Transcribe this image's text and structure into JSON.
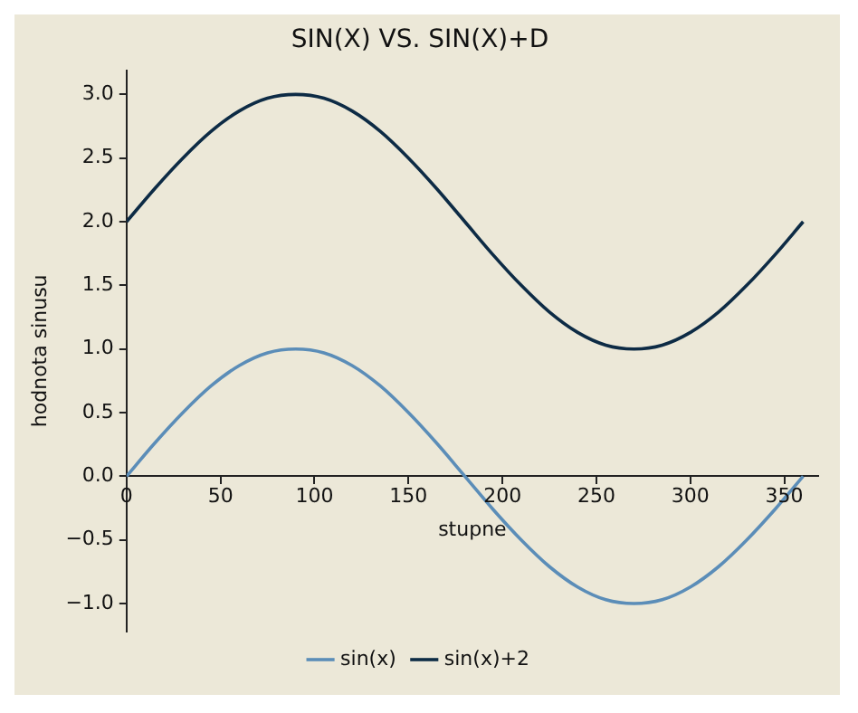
{
  "chart_data": {
    "type": "line",
    "title": "SIN(X) VS. SIN(X)+D",
    "xlabel": "stupne",
    "ylabel": "hodnota sinusu",
    "x": [
      0,
      15,
      30,
      45,
      60,
      75,
      90,
      105,
      120,
      135,
      150,
      165,
      180,
      195,
      210,
      225,
      240,
      255,
      270,
      285,
      300,
      315,
      330,
      345,
      360
    ],
    "series": [
      {
        "name": "sin(x)",
        "color": "#5b8db8",
        "values": [
          0,
          0.26,
          0.5,
          0.71,
          0.87,
          0.97,
          1,
          0.97,
          0.87,
          0.71,
          0.5,
          0.26,
          0,
          -0.26,
          -0.5,
          -0.71,
          -0.87,
          -0.97,
          -1,
          -0.97,
          -0.87,
          -0.71,
          -0.5,
          -0.26,
          0
        ]
      },
      {
        "name": "sin(x)+2",
        "color": "#0d2b45",
        "values": [
          2,
          2.26,
          2.5,
          2.71,
          2.87,
          2.97,
          3,
          2.97,
          2.87,
          2.71,
          2.5,
          2.26,
          2,
          1.74,
          1.5,
          1.29,
          1.13,
          1.03,
          1,
          1.03,
          1.13,
          1.29,
          1.5,
          1.74,
          2
        ]
      }
    ],
    "xlim": [
      0,
      368
    ],
    "xticks": [
      0,
      50,
      100,
      150,
      200,
      250,
      300,
      350
    ],
    "ylim": [
      -1.22,
      3.19
    ],
    "yticks": [
      {
        "value": -1,
        "label": "−1.0"
      },
      {
        "value": -0.5,
        "label": "−0.5"
      },
      {
        "value": 0,
        "label": "0.0"
      },
      {
        "value": 0.5,
        "label": "0.5"
      },
      {
        "value": 1,
        "label": "1.0"
      },
      {
        "value": 1.5,
        "label": "1.5"
      },
      {
        "value": 2,
        "label": "2.0"
      },
      {
        "value": 2.5,
        "label": "2.5"
      },
      {
        "value": 3,
        "label": "3.0"
      }
    ],
    "grid": false,
    "legend": "bottom",
    "marker": "none",
    "line_style": "solid"
  }
}
